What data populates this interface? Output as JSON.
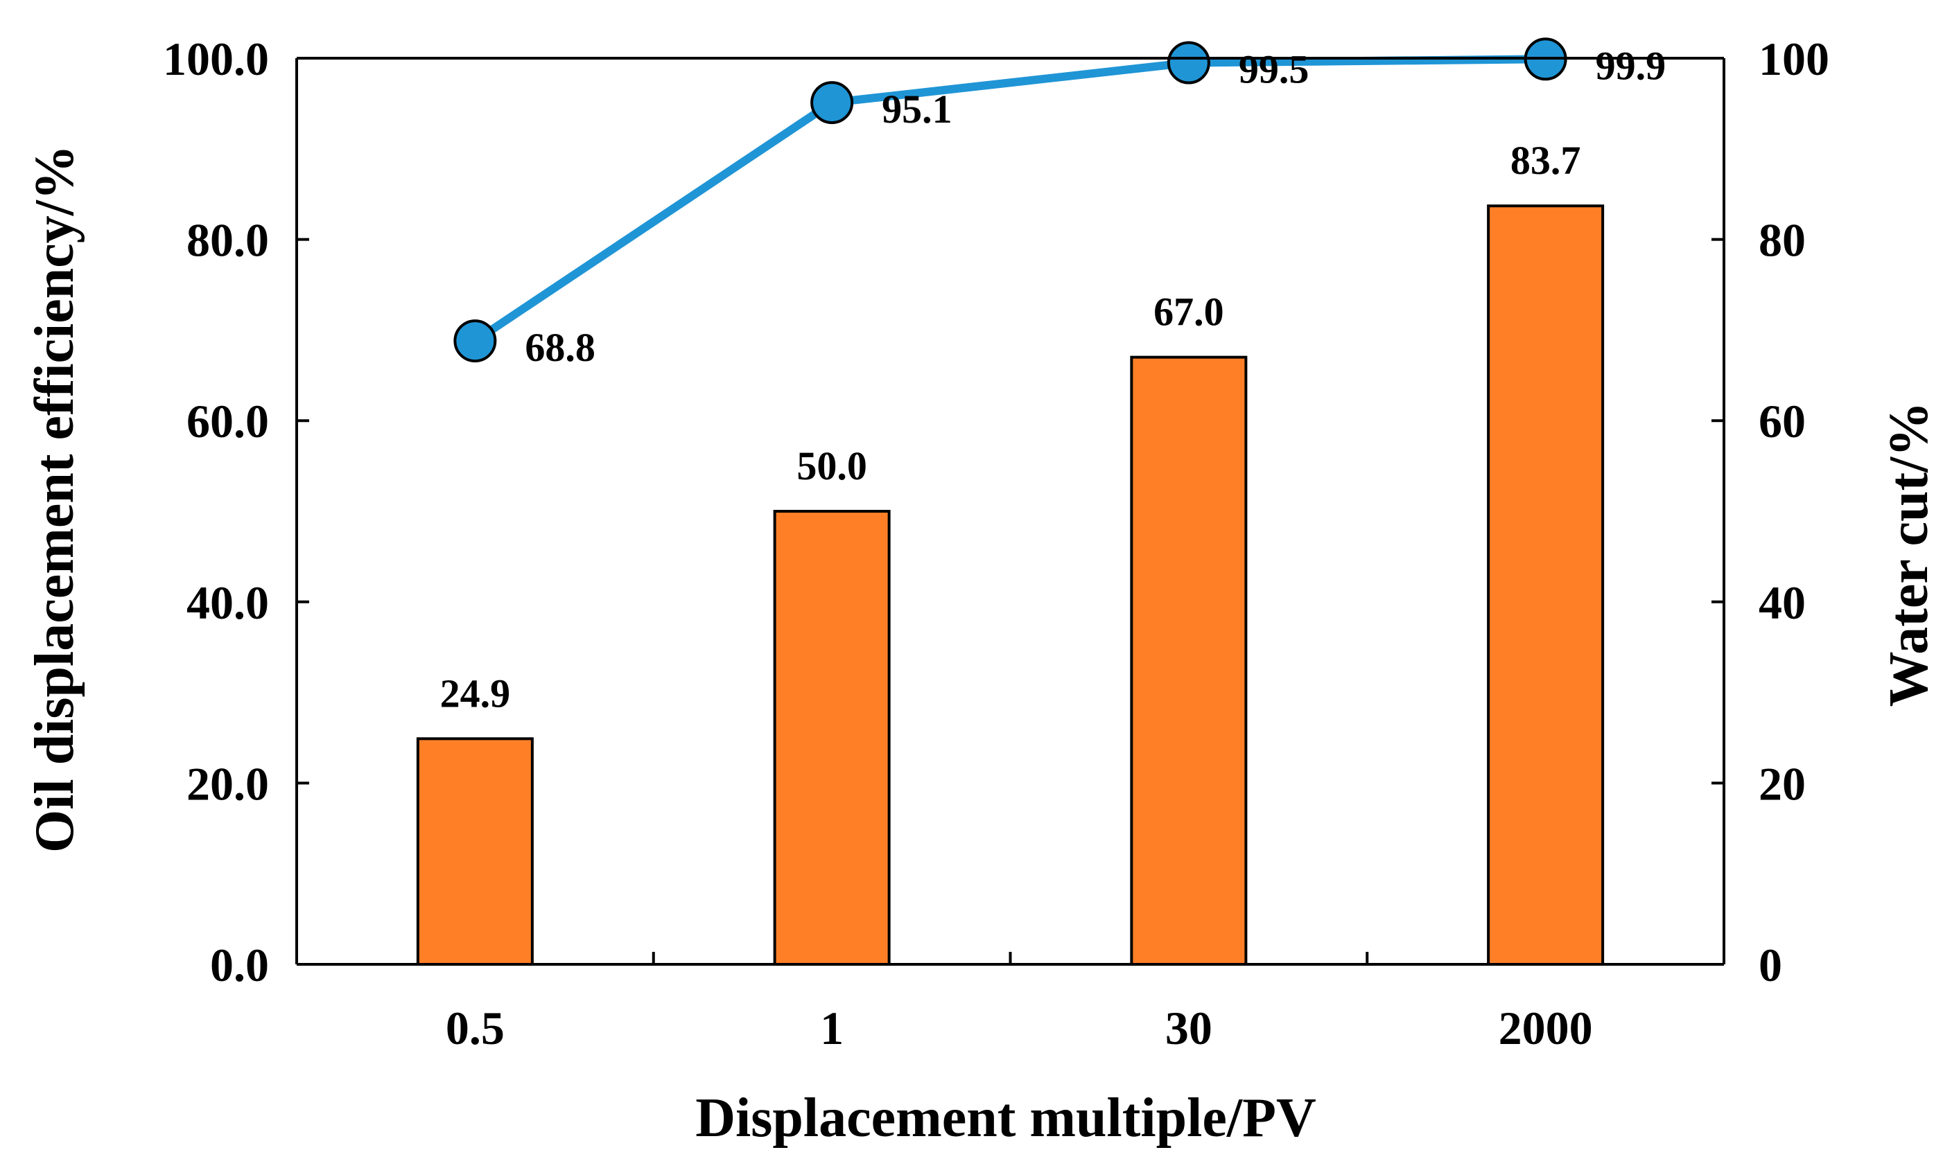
{
  "chart_data": {
    "type": "bar",
    "categories": [
      "0.5",
      "1",
      "30",
      "2000"
    ],
    "series": [
      {
        "name": "Oil displacement efficiency",
        "type": "bar",
        "axis": "left",
        "values": [
          24.9,
          50.0,
          67.0,
          83.7
        ],
        "labels": [
          "24.9",
          "50.0",
          "67.0",
          "83.7"
        ],
        "color": "#FF7F27"
      },
      {
        "name": "Water cut",
        "type": "line",
        "axis": "right",
        "values": [
          68.8,
          95.1,
          99.5,
          99.9
        ],
        "labels": [
          "68.8",
          "95.1",
          "99.5",
          "99.9"
        ],
        "color": "#1F95D6"
      }
    ],
    "xlabel": "Displacement multiple/PV",
    "ylabel": "Oil displacement efficiency/%",
    "y2label": "Water cut/%",
    "ylim": [
      0,
      100
    ],
    "y2lim": [
      0,
      100
    ],
    "yticks": [
      0,
      20,
      40,
      60,
      80,
      100
    ],
    "ytick_labels": [
      "0.0",
      "20.0",
      "40.0",
      "60.0",
      "80.0",
      "100.0"
    ],
    "y2ticks": [
      0,
      20,
      40,
      60,
      80,
      100
    ],
    "y2tick_labels": [
      "0",
      "20",
      "40",
      "60",
      "80",
      "100"
    ],
    "grid": false,
    "legend": "none"
  }
}
